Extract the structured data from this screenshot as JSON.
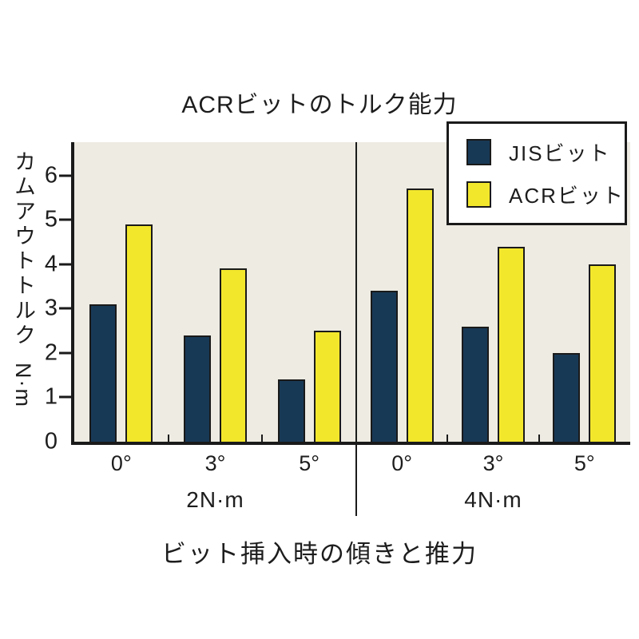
{
  "title": "ACRビットのトルク能力",
  "y_axis": {
    "label": "カムアウトトルク",
    "unit": "N·m"
  },
  "x_axis": {
    "title": "ビット挿入時の傾きと推力"
  },
  "colors": {
    "jis": "#183956",
    "acr": "#F3E72C",
    "plot_background": "#EDEBE2",
    "axis": "#1a1a1a"
  },
  "chart_data": {
    "type": "bar",
    "title": "ACRビットのトルク能力",
    "ylabel": "カムアウトトルク N·m",
    "xlabel": "ビット挿入時の傾きと推力",
    "ylim": [
      0,
      6.75
    ],
    "yticks": [
      0,
      1,
      2,
      3,
      4,
      5,
      6
    ],
    "grid": false,
    "legend_position": "top-right",
    "groups": [
      {
        "label": "2N·m",
        "categories": [
          "0°",
          "3°",
          "5°"
        ],
        "series": [
          {
            "name": "JISビット",
            "color": "#183956",
            "values": [
              3.1,
              2.4,
              1.4
            ]
          },
          {
            "name": "ACRビット",
            "color": "#F3E72C",
            "values": [
              4.9,
              3.9,
              2.5
            ]
          }
        ]
      },
      {
        "label": "4N·m",
        "categories": [
          "0°",
          "3°",
          "5°"
        ],
        "series": [
          {
            "name": "JISビット",
            "color": "#183956",
            "values": [
              3.4,
              2.6,
              2.0
            ]
          },
          {
            "name": "ACRビット",
            "color": "#F3E72C",
            "values": [
              5.7,
              4.4,
              4.0
            ]
          }
        ]
      }
    ]
  }
}
